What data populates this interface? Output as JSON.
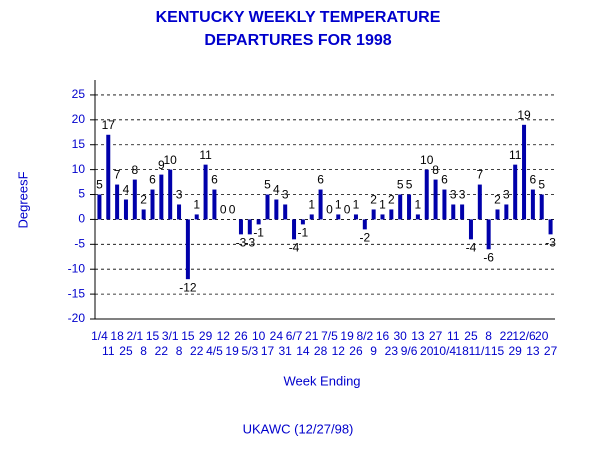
{
  "chart_data": {
    "type": "bar",
    "title": [
      "KENTUCKY WEEKLY TEMPERATURE",
      "DEPARTURES FOR 1998"
    ],
    "y_label": "DegreesF",
    "x_label": "Week Ending",
    "note": "UKAWC (12/27/98)",
    "categories": [
      "1/4",
      "11",
      "18",
      "25",
      "2/1",
      "8",
      "15",
      "22",
      "3/1",
      "8",
      "15",
      "22",
      "29",
      "4/5",
      "12",
      "19",
      "26",
      "5/3",
      "10",
      "17",
      "24",
      "31",
      "6/7",
      "14",
      "21",
      "28",
      "7/5",
      "12",
      "19",
      "26",
      "8/2",
      "9",
      "16",
      "23",
      "30",
      "9/6",
      "13",
      "20",
      "27",
      "10/4",
      "11",
      "18",
      "25",
      "11/1",
      "8",
      "15",
      "22",
      "29",
      "12/6",
      "13",
      "20",
      "27"
    ],
    "values": [
      5,
      17,
      7,
      4,
      8,
      2,
      6,
      9,
      10,
      3,
      -12,
      1,
      11,
      6,
      0,
      0,
      -3,
      -3,
      -1,
      5,
      4,
      3,
      -4,
      -1,
      1,
      6,
      0,
      1,
      0,
      1,
      -2,
      2,
      1,
      2,
      5,
      5,
      1,
      10,
      8,
      6,
      3,
      3,
      -4,
      7,
      -6,
      2,
      3,
      11,
      19,
      6,
      5,
      -3
    ],
    "color": "#0000aa",
    "ylim": [
      -20,
      28
    ],
    "yticks": [
      -20,
      -15,
      -10,
      -5,
      0,
      5,
      10,
      15,
      20,
      25
    ],
    "grid": true
  }
}
